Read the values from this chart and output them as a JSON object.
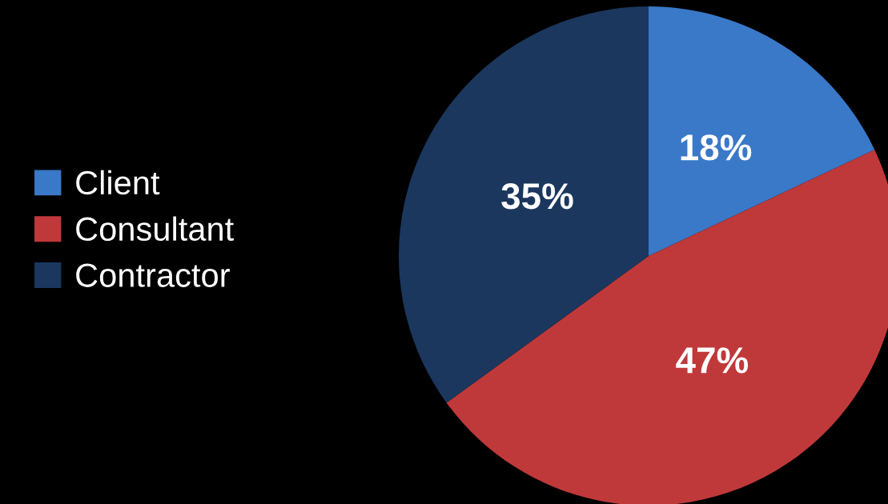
{
  "chart_data": {
    "type": "pie",
    "categories": [
      "Client",
      "Consultant",
      "Contractor"
    ],
    "values": [
      18,
      47,
      35
    ],
    "colors": [
      "#3a78c8",
      "#c0393a",
      "#1b375e"
    ],
    "value_labels": [
      "18%",
      "47%",
      "35%"
    ],
    "legend": "left"
  }
}
